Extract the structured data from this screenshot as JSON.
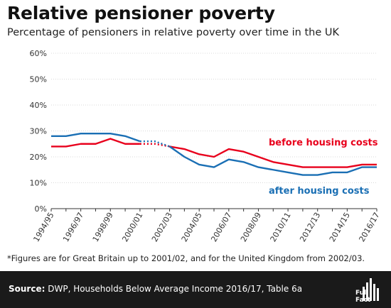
{
  "title": "Relative pensioner poverty",
  "subtitle": "Percentage of pensioners in relative poverty over time in the UK",
  "footnote": "*Figures are for Great Britain up to 2001/02, and for the United Kingdom from 2002/03.",
  "source": {
    "label": "Source:",
    "text": " DWP, Households Below Average Income 2016/17, Table 6a"
  },
  "logo": {
    "text": "Full Fact",
    "icon": "full-fact-logo-icon"
  },
  "chart_data": {
    "type": "line",
    "title": "Relative pensioner poverty",
    "ylim": [
      0,
      60
    ],
    "yticks": [
      "0%",
      "10%",
      "20%",
      "30%",
      "40%",
      "50%",
      "60%"
    ],
    "grid": true,
    "x": [
      "1994/95",
      "1995/96",
      "1996/97",
      "1997/98",
      "1998/99",
      "1999/00",
      "2000/01",
      "2001/02",
      "2002/03",
      "2003/04",
      "2004/05",
      "2005/06",
      "2006/07",
      "2007/08",
      "2008/09",
      "2009/10",
      "2010/11",
      "2011/12",
      "2012/13",
      "2013/14",
      "2014/15",
      "2015/16",
      "2016/17"
    ],
    "xtick_labels": [
      "1994/95",
      "1996/97",
      "1998/99",
      "2000/01",
      "2002/03",
      "2004/05",
      "2006/07",
      "2008/09",
      "2010/11",
      "2012/13",
      "2014/15",
      "2016/17"
    ],
    "series": [
      {
        "name": "before housing costs",
        "color": "#e8001c",
        "values": [
          24,
          24,
          25,
          25,
          27,
          25,
          25,
          25,
          24,
          23,
          21,
          20,
          23,
          22,
          20,
          18,
          17,
          16,
          16,
          16,
          16,
          17,
          17
        ]
      },
      {
        "name": "after housing costs",
        "color": "#1a6fb4",
        "values": [
          28,
          28,
          29,
          29,
          29,
          28,
          26,
          26,
          24,
          20,
          17,
          16,
          19,
          18,
          16,
          15,
          14,
          13,
          13,
          14,
          14,
          16,
          16
        ]
      }
    ],
    "break_note": "dotted segment between 2000/01 and 2002/03 (GB to UK change)"
  }
}
